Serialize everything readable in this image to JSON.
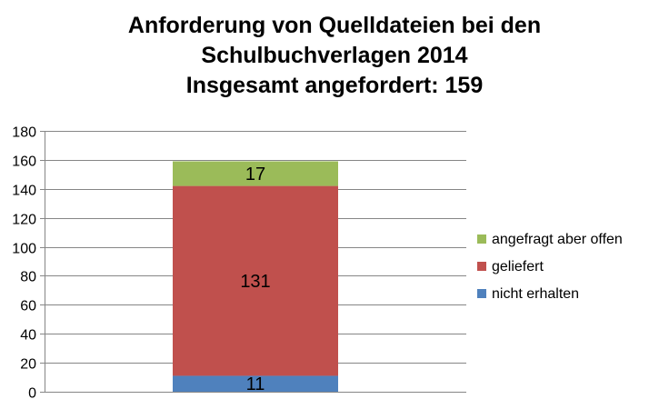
{
  "chart_data": {
    "type": "bar",
    "stacked": true,
    "title": "Anforderung von Quelldateien bei den Schulbuchverlagen 2014",
    "title_lines": [
      "Anforderung von Quelldateien bei den",
      "Schulbuchverlagen 2014",
      "Insgesamt angefordert: 159"
    ],
    "categories": [
      ""
    ],
    "series": [
      {
        "name": "nicht erhalten",
        "values": [
          11
        ],
        "color": "#4F81BD"
      },
      {
        "name": "geliefert",
        "values": [
          131
        ],
        "color": "#C0504D"
      },
      {
        "name": "angefragt aber offen",
        "values": [
          17
        ],
        "color": "#9BBB59"
      }
    ],
    "ylim": [
      0,
      180
    ],
    "yticks": [
      0,
      20,
      40,
      60,
      80,
      100,
      120,
      140,
      160,
      180
    ],
    "grid": true,
    "legend": "right",
    "data_labels": true
  }
}
